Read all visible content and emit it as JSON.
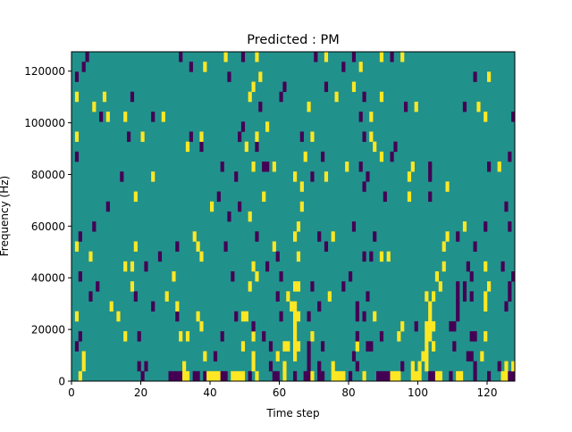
{
  "chart_data": {
    "type": "heatmap",
    "title": "Predicted : PM",
    "xlabel": "Time step",
    "ylabel": "Frequency (Hz)",
    "xlim": [
      0,
      128
    ],
    "ylim": [
      0,
      127500
    ],
    "n_cols": 128,
    "n_rows": 33,
    "x_ticks": [
      0,
      20,
      40,
      60,
      80,
      100,
      120
    ],
    "x_tick_labels": [
      "0",
      "20",
      "40",
      "60",
      "80",
      "100",
      "120"
    ],
    "y_ticks": [
      0,
      20000,
      40000,
      60000,
      80000,
      100000,
      120000
    ],
    "y_tick_labels": [
      "0",
      "20000",
      "40000",
      "60000",
      "80000",
      "100000",
      "120000"
    ],
    "colormap": {
      "0": "#440154",
      "0.5": "#21918c",
      "1": "#fde725"
    },
    "background_value": 0.5,
    "rows_note": "rows[i] = list of [col, value, span] non-background cells, row 0 = lowest frequency",
    "rows": [
      [
        [
          2,
          1,
          1
        ],
        [
          20,
          0,
          1
        ],
        [
          28,
          0,
          4
        ],
        [
          32,
          1,
          2
        ],
        [
          35,
          0,
          2
        ],
        [
          38,
          0,
          1
        ],
        [
          39,
          1,
          4
        ],
        [
          43,
          0,
          2
        ],
        [
          46,
          1,
          4
        ],
        [
          51,
          0,
          1
        ],
        [
          53,
          1,
          1
        ],
        [
          58,
          0,
          2
        ],
        [
          61,
          1,
          1
        ],
        [
          64,
          0,
          1
        ],
        [
          67,
          0,
          2
        ],
        [
          69,
          1,
          1
        ],
        [
          71,
          0,
          2
        ],
        [
          75,
          1,
          4
        ],
        [
          80,
          0,
          1
        ],
        [
          84,
          1,
          1
        ],
        [
          88,
          0,
          4
        ],
        [
          92,
          1,
          3
        ],
        [
          98,
          1,
          3
        ],
        [
          103,
          0,
          2
        ],
        [
          105,
          1,
          2
        ],
        [
          109,
          0,
          1
        ],
        [
          111,
          1,
          2
        ],
        [
          116,
          0,
          1
        ],
        [
          120,
          0,
          1
        ],
        [
          124,
          1,
          2
        ],
        [
          126,
          0,
          2
        ]
      ],
      [
        [
          3,
          1,
          1
        ],
        [
          19,
          0,
          1
        ],
        [
          21,
          0,
          1
        ],
        [
          32,
          1,
          1
        ],
        [
          52,
          1,
          1
        ],
        [
          57,
          0,
          1
        ],
        [
          61,
          1,
          1
        ],
        [
          68,
          0,
          1
        ],
        [
          71,
          0,
          1
        ],
        [
          75,
          1,
          1
        ],
        [
          82,
          0,
          1
        ],
        [
          95,
          0,
          1
        ],
        [
          98,
          1,
          1
        ],
        [
          100,
          1,
          1
        ],
        [
          102,
          1,
          1
        ],
        [
          116,
          0,
          1
        ],
        [
          123,
          0,
          1
        ],
        [
          125,
          1,
          1
        ],
        [
          127,
          1,
          1
        ]
      ],
      [
        [
          3,
          1,
          1
        ],
        [
          38,
          1,
          1
        ],
        [
          41,
          0,
          1
        ],
        [
          52,
          1,
          1
        ],
        [
          59,
          1,
          1
        ],
        [
          64,
          1,
          1
        ],
        [
          68,
          0,
          1
        ],
        [
          81,
          0,
          1
        ],
        [
          101,
          1,
          2
        ],
        [
          114,
          0,
          2
        ],
        [
          118,
          1,
          1
        ]
      ],
      [
        [
          1,
          0,
          1
        ],
        [
          49,
          1,
          1
        ],
        [
          57,
          0,
          1
        ],
        [
          61,
          1,
          2
        ],
        [
          64,
          1,
          1
        ],
        [
          65,
          1,
          1
        ],
        [
          68,
          0,
          1
        ],
        [
          72,
          0,
          1
        ],
        [
          82,
          1,
          1
        ],
        [
          85,
          0,
          2
        ],
        [
          102,
          1,
          1
        ],
        [
          104,
          1,
          1
        ],
        [
          110,
          0,
          1
        ]
      ],
      [
        [
          2,
          0,
          1
        ],
        [
          15,
          1,
          1
        ],
        [
          19,
          0,
          1
        ],
        [
          31,
          1,
          1
        ],
        [
          33,
          1,
          1
        ],
        [
          43,
          0,
          1
        ],
        [
          52,
          1,
          1
        ],
        [
          55,
          0,
          1
        ],
        [
          64,
          1,
          1
        ],
        [
          69,
          1,
          1
        ],
        [
          82,
          0,
          1
        ],
        [
          89,
          0,
          1
        ],
        [
          94,
          1,
          1
        ],
        [
          102,
          1,
          2
        ],
        [
          115,
          0,
          2
        ],
        [
          119,
          1,
          1
        ]
      ],
      [
        [
          37,
          1,
          1
        ],
        [
          52,
          0,
          1
        ],
        [
          64,
          1,
          1
        ],
        [
          95,
          1,
          1
        ],
        [
          99,
          0,
          1
        ],
        [
          102,
          1,
          3
        ],
        [
          109,
          0,
          2
        ]
      ],
      [
        [
          1,
          1,
          1
        ],
        [
          13,
          1,
          1
        ],
        [
          30,
          0,
          1
        ],
        [
          36,
          1,
          1
        ],
        [
          47,
          0,
          1
        ],
        [
          49,
          1,
          2
        ],
        [
          60,
          0,
          1
        ],
        [
          64,
          1,
          2
        ],
        [
          68,
          0,
          1
        ],
        [
          82,
          0,
          1
        ],
        [
          84,
          0,
          1
        ],
        [
          87,
          1,
          1
        ],
        [
          103,
          1,
          1
        ],
        [
          111,
          0,
          1
        ]
      ],
      [
        [
          11,
          1,
          1
        ],
        [
          23,
          0,
          1
        ],
        [
          30,
          1,
          1
        ],
        [
          63,
          1,
          2
        ],
        [
          71,
          0,
          1
        ],
        [
          82,
          0,
          1
        ],
        [
          103,
          1,
          1
        ],
        [
          111,
          0,
          1
        ],
        [
          119,
          1,
          1
        ],
        [
          125,
          0,
          1
        ]
      ],
      [
        [
          5,
          0,
          1
        ],
        [
          18,
          0,
          1
        ],
        [
          27,
          1,
          1
        ],
        [
          59,
          0,
          1
        ],
        [
          62,
          1,
          1
        ],
        [
          74,
          1,
          1
        ],
        [
          85,
          0,
          1
        ],
        [
          102,
          1,
          1
        ],
        [
          104,
          1,
          1
        ],
        [
          111,
          0,
          1
        ],
        [
          113,
          0,
          1
        ],
        [
          115,
          0,
          1
        ],
        [
          119,
          1,
          1
        ],
        [
          126,
          0,
          1
        ]
      ],
      [
        [
          7,
          0,
          1
        ],
        [
          17,
          1,
          1
        ],
        [
          51,
          1,
          1
        ],
        [
          64,
          1,
          2
        ],
        [
          69,
          0,
          1
        ],
        [
          78,
          0,
          1
        ],
        [
          106,
          1,
          1
        ],
        [
          111,
          0,
          1
        ],
        [
          113,
          0,
          1
        ],
        [
          120,
          1,
          1
        ],
        [
          126,
          0,
          1
        ]
      ],
      [
        [
          2,
          0,
          1
        ],
        [
          29,
          1,
          1
        ],
        [
          46,
          0,
          1
        ],
        [
          53,
          1,
          1
        ],
        [
          60,
          0,
          1
        ],
        [
          80,
          0,
          1
        ],
        [
          105,
          1,
          1
        ],
        [
          115,
          0,
          1
        ],
        [
          127,
          0,
          1
        ]
      ],
      [
        [
          15,
          1,
          1
        ],
        [
          17,
          1,
          1
        ],
        [
          21,
          0,
          1
        ],
        [
          52,
          1,
          1
        ],
        [
          56,
          0,
          1
        ],
        [
          107,
          1,
          1
        ],
        [
          114,
          0,
          1
        ],
        [
          119,
          1,
          1
        ],
        [
          124,
          0,
          1
        ]
      ],
      [
        [
          5,
          1,
          1
        ],
        [
          25,
          0,
          1
        ],
        [
          37,
          1,
          1
        ],
        [
          59,
          0,
          1
        ],
        [
          65,
          1,
          1
        ],
        [
          84,
          0,
          1
        ],
        [
          86,
          0,
          1
        ],
        [
          89,
          1,
          1
        ],
        [
          91,
          1,
          1
        ]
      ],
      [
        [
          1,
          1,
          1
        ],
        [
          18,
          1,
          1
        ],
        [
          30,
          0,
          1
        ],
        [
          36,
          1,
          1
        ],
        [
          44,
          0,
          1
        ],
        [
          58,
          1,
          1
        ],
        [
          73,
          0,
          1
        ],
        [
          107,
          1,
          1
        ],
        [
          116,
          0,
          1
        ]
      ],
      [
        [
          2,
          0,
          1
        ],
        [
          35,
          1,
          1
        ],
        [
          53,
          0,
          1
        ],
        [
          64,
          1,
          1
        ],
        [
          71,
          0,
          1
        ],
        [
          75,
          1,
          1
        ],
        [
          87,
          0,
          1
        ],
        [
          108,
          1,
          1
        ],
        [
          111,
          0,
          1
        ]
      ],
      [
        [
          6,
          0,
          1
        ],
        [
          65,
          1,
          1
        ],
        [
          81,
          0,
          1
        ],
        [
          113,
          1,
          1
        ],
        [
          119,
          0,
          1
        ],
        [
          126,
          0,
          1
        ]
      ],
      [
        [
          45,
          0,
          1
        ],
        [
          51,
          1,
          1
        ]
      ],
      [
        [
          10,
          0,
          1
        ],
        [
          40,
          1,
          1
        ],
        [
          48,
          0,
          1
        ],
        [
          66,
          1,
          1
        ],
        [
          125,
          0,
          1
        ]
      ],
      [
        [
          18,
          1,
          1
        ],
        [
          42,
          0,
          1
        ],
        [
          55,
          1,
          1
        ],
        [
          90,
          0,
          1
        ],
        [
          97,
          1,
          1
        ],
        [
          103,
          0,
          1
        ]
      ],
      [
        [
          66,
          1,
          1
        ],
        [
          84,
          0,
          1
        ],
        [
          108,
          1,
          1
        ]
      ],
      [
        [
          14,
          0,
          1
        ],
        [
          23,
          1,
          1
        ],
        [
          47,
          0,
          1
        ],
        [
          64,
          1,
          1
        ],
        [
          69,
          0,
          1
        ],
        [
          73,
          1,
          1
        ],
        [
          85,
          0,
          1
        ],
        [
          97,
          1,
          1
        ],
        [
          103,
          0,
          1
        ]
      ],
      [
        [
          43,
          0,
          1
        ],
        [
          52,
          1,
          1
        ],
        [
          55,
          0,
          2
        ],
        [
          58,
          1,
          1
        ],
        [
          79,
          1,
          1
        ],
        [
          83,
          0,
          1
        ],
        [
          98,
          1,
          1
        ],
        [
          103,
          0,
          1
        ],
        [
          120,
          0,
          1
        ],
        [
          123,
          1,
          1
        ]
      ],
      [
        [
          1,
          0,
          1
        ],
        [
          67,
          1,
          1
        ],
        [
          72,
          0,
          1
        ],
        [
          89,
          1,
          1
        ],
        [
          92,
          0,
          1
        ],
        [
          126,
          0,
          1
        ]
      ],
      [
        [
          33,
          1,
          1
        ],
        [
          37,
          0,
          1
        ],
        [
          50,
          1,
          1
        ],
        [
          53,
          0,
          1
        ],
        [
          87,
          1,
          1
        ],
        [
          93,
          0,
          1
        ]
      ],
      [
        [
          1,
          1,
          1
        ],
        [
          16,
          0,
          1
        ],
        [
          20,
          1,
          1
        ],
        [
          34,
          0,
          1
        ],
        [
          37,
          1,
          1
        ],
        [
          48,
          0,
          1
        ],
        [
          53,
          1,
          1
        ],
        [
          66,
          0,
          1
        ],
        [
          69,
          1,
          1
        ],
        [
          84,
          0,
          1
        ],
        [
          86,
          1,
          1
        ]
      ],
      [
        [
          49,
          0,
          1
        ],
        [
          56,
          1,
          1
        ]
      ],
      [
        [
          8,
          0,
          1
        ],
        [
          10,
          1,
          1
        ],
        [
          15,
          1,
          1
        ],
        [
          23,
          0,
          1
        ],
        [
          26,
          1,
          1
        ],
        [
          83,
          0,
          1
        ],
        [
          86,
          1,
          1
        ],
        [
          119,
          1,
          1
        ],
        [
          127,
          0,
          1
        ]
      ],
      [
        [
          6,
          1,
          1
        ],
        [
          54,
          0,
          1
        ],
        [
          68,
          1,
          1
        ],
        [
          96,
          0,
          1
        ],
        [
          99,
          1,
          1
        ],
        [
          113,
          0,
          1
        ],
        [
          117,
          1,
          1
        ]
      ],
      [
        [
          1,
          1,
          1
        ],
        [
          9,
          1,
          1
        ],
        [
          17,
          0,
          1
        ],
        [
          51,
          1,
          1
        ],
        [
          60,
          0,
          1
        ],
        [
          76,
          1,
          1
        ],
        [
          84,
          0,
          1
        ],
        [
          89,
          1,
          1
        ]
      ],
      [
        [
          52,
          1,
          1
        ],
        [
          61,
          0,
          1
        ],
        [
          73,
          0,
          1
        ],
        [
          81,
          1,
          1
        ]
      ],
      [
        [
          1,
          0,
          1
        ],
        [
          45,
          0,
          1
        ],
        [
          54,
          1,
          1
        ],
        [
          116,
          0,
          1
        ],
        [
          120,
          1,
          1
        ]
      ],
      [
        [
          3,
          0,
          1
        ],
        [
          34,
          0,
          1
        ],
        [
          38,
          1,
          1
        ],
        [
          78,
          0,
          1
        ],
        [
          83,
          1,
          1
        ]
      ],
      [
        [
          4,
          0,
          1
        ],
        [
          31,
          0,
          1
        ],
        [
          44,
          1,
          1
        ],
        [
          49,
          0,
          1
        ],
        [
          53,
          1,
          1
        ],
        [
          70,
          0,
          1
        ],
        [
          73,
          1,
          1
        ],
        [
          81,
          0,
          1
        ],
        [
          89,
          1,
          1
        ],
        [
          92,
          0,
          1
        ],
        [
          95,
          1,
          1
        ]
      ]
    ]
  }
}
